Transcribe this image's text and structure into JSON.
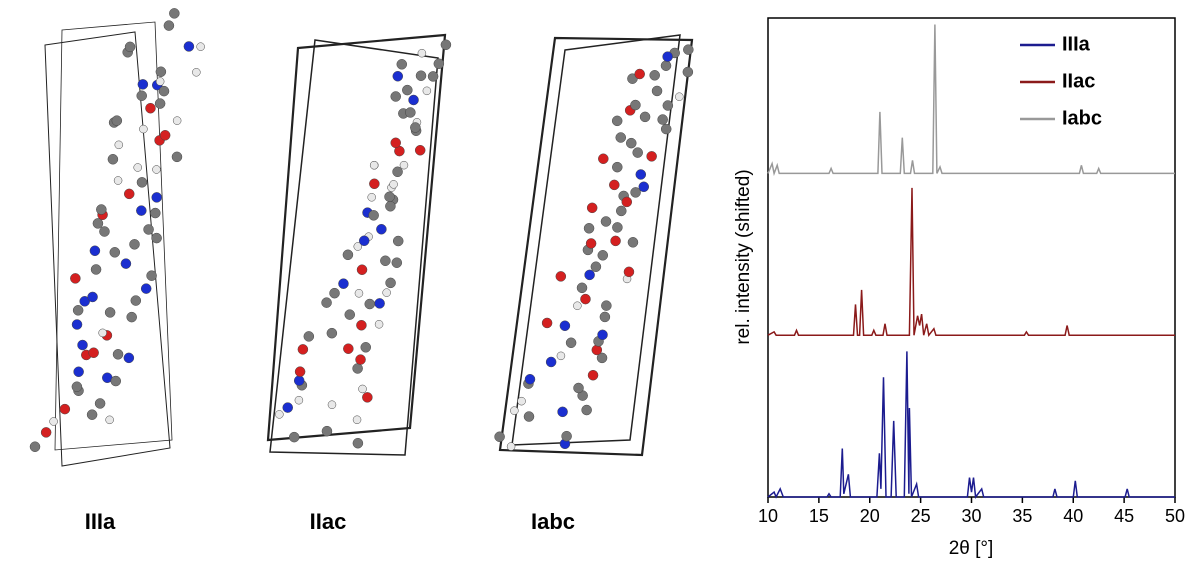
{
  "structures": [
    {
      "label": "IIIa"
    },
    {
      "label": "IIac"
    },
    {
      "label": "Iabc"
    }
  ],
  "chart_data": {
    "type": "line",
    "x_label": "2θ [°]",
    "y_label": "rel. intensity (shifted)",
    "xlim": [
      10,
      50
    ],
    "xticks": [
      10,
      15,
      20,
      25,
      30,
      35,
      40,
      45,
      50
    ],
    "ylim": [
      0,
      2.96
    ],
    "legend": "upper right",
    "series": [
      {
        "name": "IIIa",
        "color": "#1c1c8f",
        "x": [
          10,
          10.6,
          10.8,
          11.2,
          11.5,
          15.8,
          16,
          16.2,
          17.1,
          17.3,
          17.45,
          17.9,
          18.1,
          20.7,
          20.95,
          21.1,
          21.35,
          21.6,
          22.1,
          22.35,
          22.6,
          23.4,
          23.65,
          23.85,
          23.9,
          24.1,
          24.6,
          24.8,
          29.6,
          29.8,
          30.0,
          30.2,
          30.4,
          31.0,
          31.2,
          38.0,
          38.2,
          38.4,
          40.0,
          40.2,
          40.4,
          45.1,
          45.3,
          45.5,
          50
        ],
        "values": [
          0,
          0.03,
          0,
          0.05,
          0,
          0,
          0.02,
          0,
          0,
          0.3,
          0.02,
          0.14,
          0,
          0,
          0.27,
          0.05,
          0.74,
          0,
          0,
          0.47,
          0,
          0,
          0.9,
          0.02,
          0.55,
          0,
          0.08,
          0,
          0,
          0.12,
          0.03,
          0.12,
          0,
          0.05,
          0,
          0,
          0.05,
          0,
          0,
          0.1,
          0,
          0,
          0.05,
          0,
          0
        ]
      },
      {
        "name": "IIac",
        "color": "#8b1a1a",
        "x": [
          10,
          10.6,
          10.8,
          12.6,
          12.8,
          13,
          18.4,
          18.6,
          18.8,
          19.0,
          19.2,
          19.4,
          20.2,
          20.4,
          20.6,
          21.3,
          21.5,
          21.7,
          23.9,
          24.15,
          24.35,
          24.7,
          24.9,
          25.1,
          25.3,
          25.6,
          25.8,
          26.3,
          26.5,
          35.2,
          35.4,
          35.6,
          39.2,
          39.4,
          39.6,
          50
        ],
        "values": [
          1,
          1.02,
          1,
          1,
          1.03,
          1,
          1,
          1.19,
          1,
          1,
          1.28,
          1,
          1,
          1.03,
          1,
          1,
          1.07,
          1,
          1,
          1.91,
          1,
          1.12,
          1.06,
          1.13,
          1,
          1.07,
          1,
          1.04,
          1,
          1,
          1.02,
          1,
          1,
          1.06,
          1,
          1
        ]
      },
      {
        "name": "Iabc",
        "color": "#999999",
        "x": [
          10,
          10.4,
          10.6,
          10.9,
          11.1,
          16,
          16.2,
          16.4,
          20.8,
          21.0,
          21.2,
          23.0,
          23.2,
          23.4,
          24.0,
          24.2,
          24.4,
          26.2,
          26.4,
          26.6,
          26.9,
          27.1,
          40.6,
          40.8,
          41,
          42.3,
          42.5,
          42.7,
          50
        ],
        "values": [
          2,
          2.06,
          2,
          2.05,
          2,
          2,
          2.03,
          2,
          2,
          2.38,
          2,
          2,
          2.22,
          2,
          2,
          2.08,
          2,
          2,
          2.92,
          2,
          2.04,
          2,
          2,
          2.05,
          2,
          2,
          2.03,
          2,
          2
        ]
      }
    ]
  }
}
